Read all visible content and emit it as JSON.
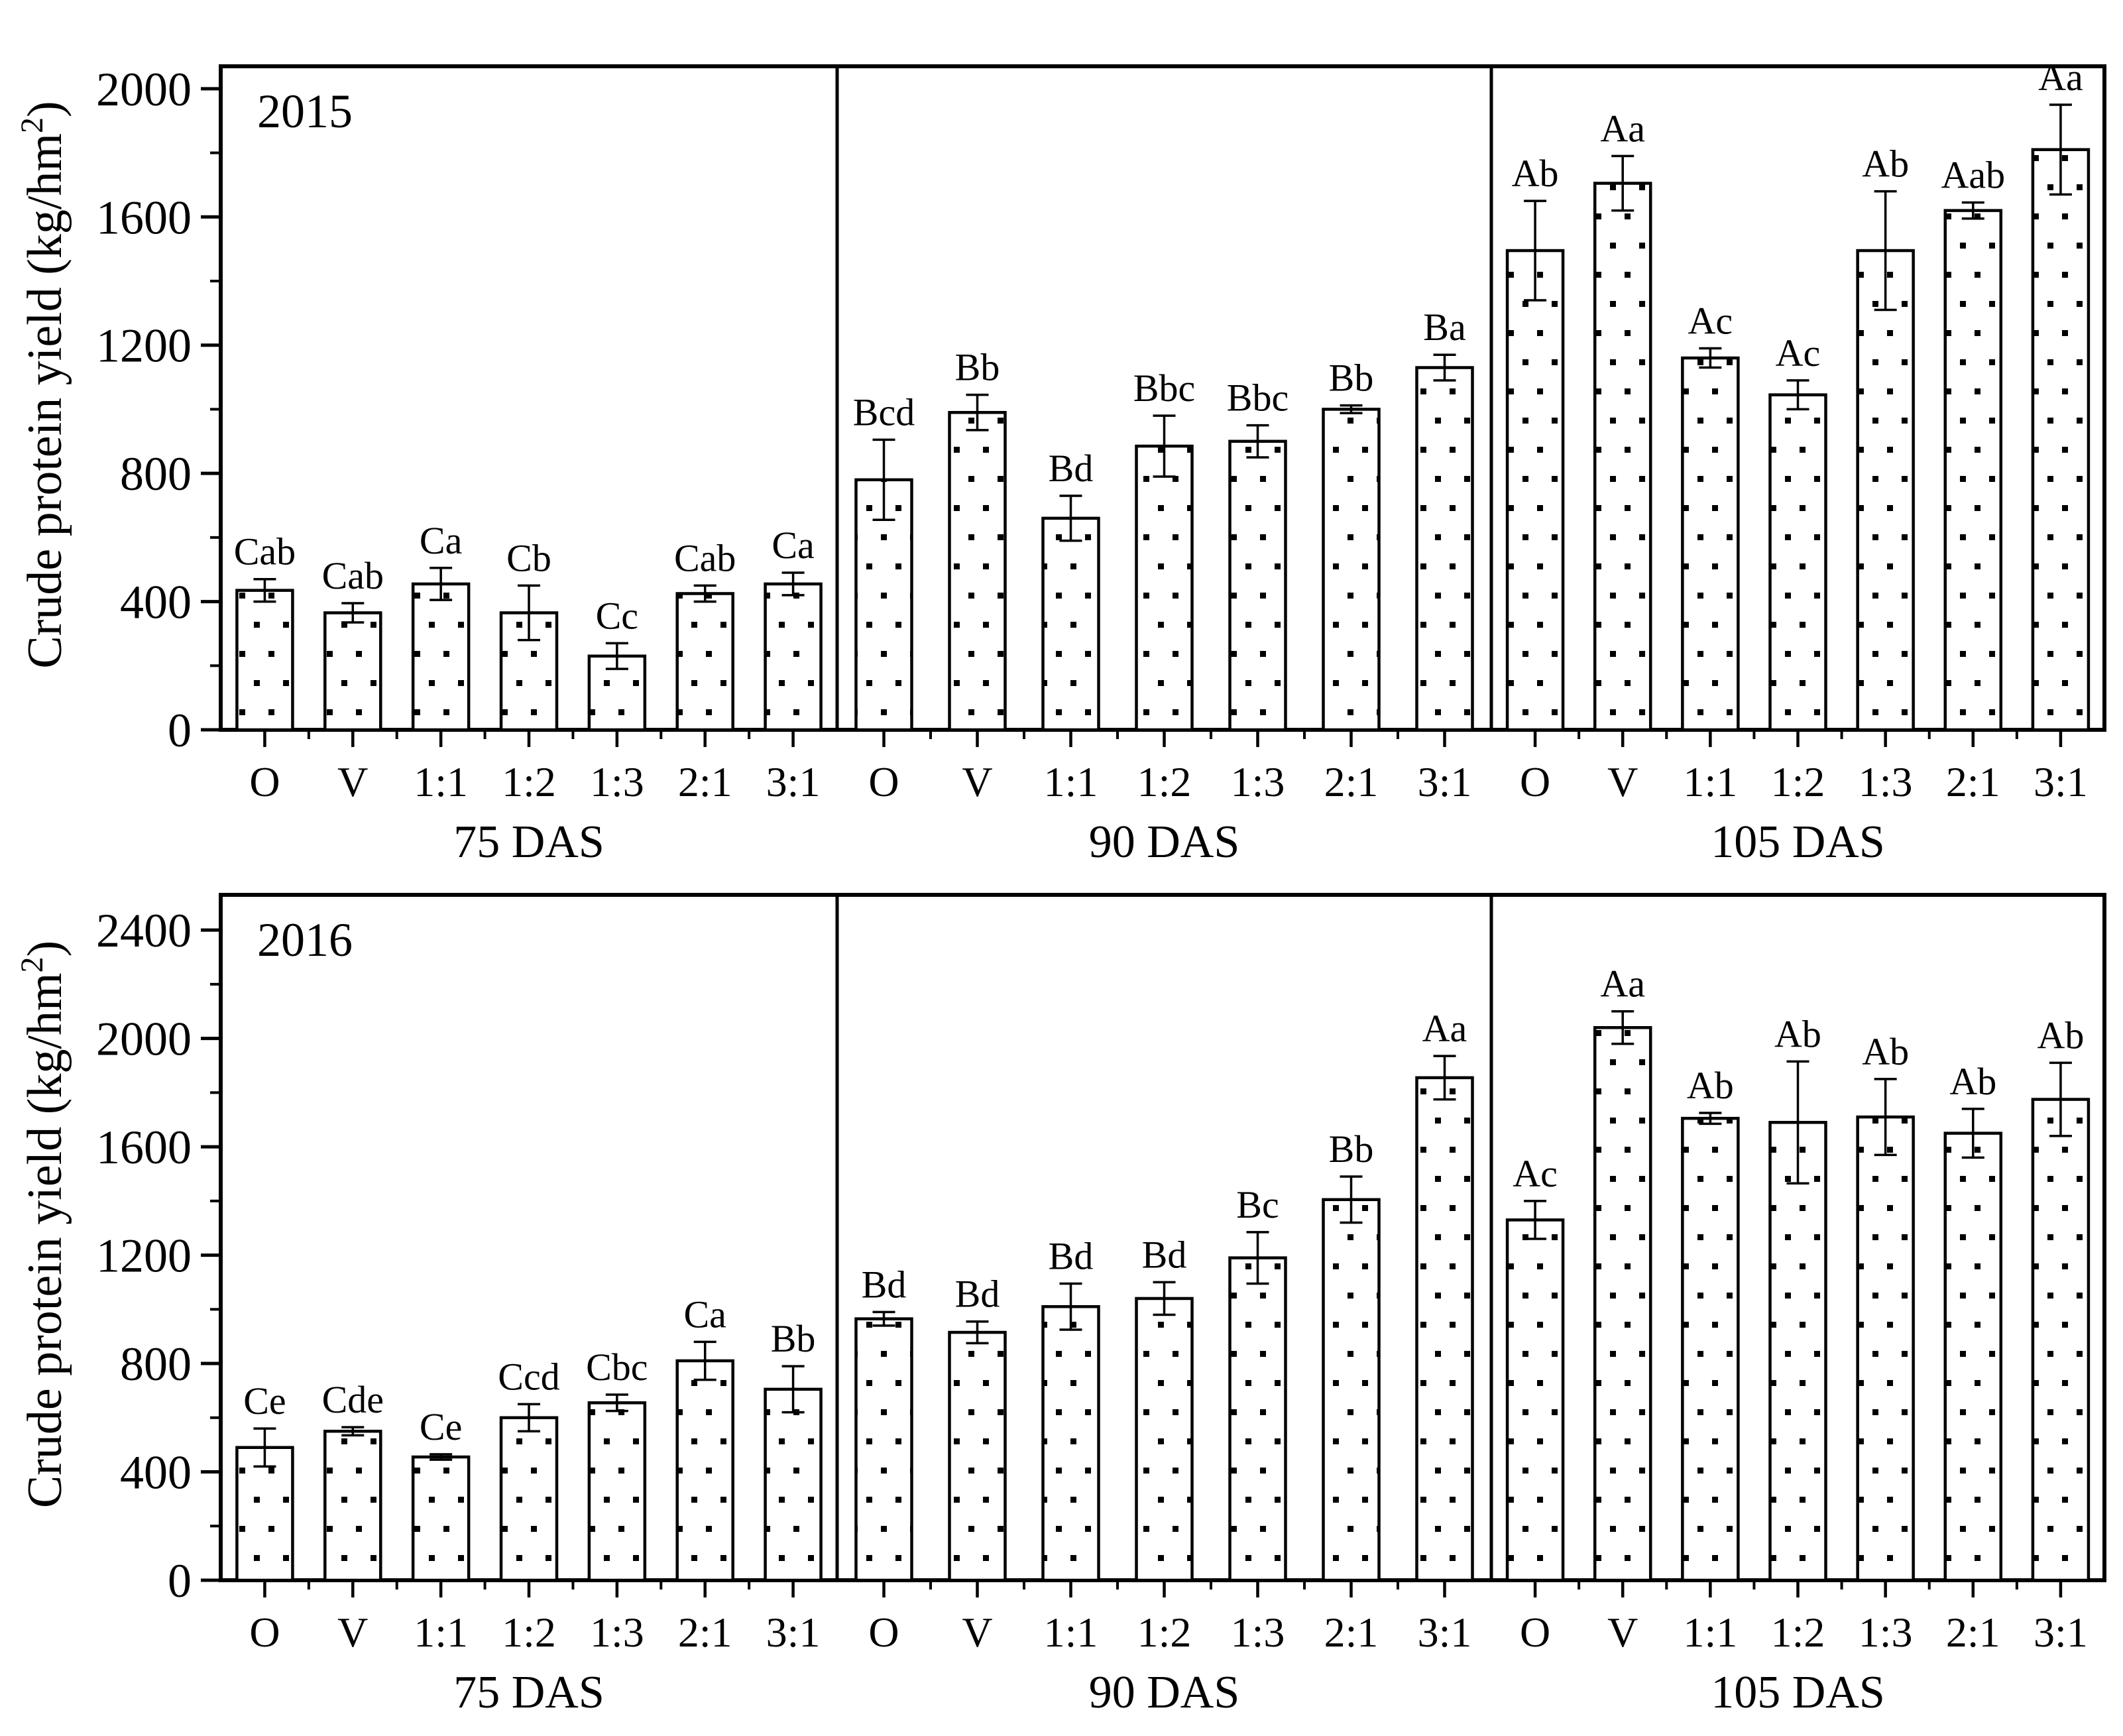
{
  "figure": {
    "background": "#ffffff",
    "foreground": "#000000",
    "y_axis_title": {
      "prefix": "Crude protein yield (kg/hm",
      "superscript": "2",
      "suffix": ")"
    }
  },
  "chart_data": [
    {
      "type": "bar",
      "title": "2015",
      "ylabel": "Crude protein yield (kg/hm²)",
      "xlabel": "",
      "ylim": [
        0,
        2070
      ],
      "yticks_major": [
        0,
        400,
        800,
        1200,
        1600,
        2000
      ],
      "ytick_minor_step": 200,
      "grid": false,
      "legend": "none",
      "categories": [
        "O",
        "V",
        "1:1",
        "1:2",
        "1:3",
        "2:1",
        "3:1"
      ],
      "group_labels": [
        "75 DAS",
        "90 DAS",
        "105 DAS"
      ],
      "series": [
        {
          "group": "75 DAS",
          "values": [
            435,
            365,
            455,
            365,
            230,
            425,
            455
          ],
          "errors": [
            35,
            30,
            50,
            85,
            40,
            25,
            35
          ],
          "letters": [
            "Cab",
            "Cab",
            "Ca",
            "Cb",
            "Cc",
            "Cab",
            "Ca"
          ]
        },
        {
          "group": "90 DAS",
          "values": [
            780,
            990,
            660,
            885,
            900,
            1000,
            1130
          ],
          "errors": [
            125,
            55,
            70,
            95,
            50,
            12,
            40
          ],
          "letters": [
            "Bcd",
            "Bb",
            "Bd",
            "Bbc",
            "Bbc",
            "Bb",
            "Ba"
          ]
        },
        {
          "group": "105 DAS",
          "values": [
            1495,
            1705,
            1160,
            1045,
            1495,
            1620,
            1810
          ],
          "errors": [
            155,
            85,
            30,
            45,
            185,
            25,
            140
          ],
          "letters": [
            "Ab",
            "Aa",
            "Ac",
            "Ac",
            "Ab",
            "Aab",
            "Aa"
          ]
        }
      ]
    },
    {
      "type": "bar",
      "title": "2016",
      "ylabel": "Crude protein yield (kg/hm²)",
      "xlabel": "",
      "ylim": [
        0,
        2530
      ],
      "yticks_major": [
        0,
        400,
        800,
        1200,
        1600,
        2000,
        2400
      ],
      "ytick_minor_step": 200,
      "grid": false,
      "legend": "none",
      "categories": [
        "O",
        "V",
        "1:1",
        "1:2",
        "1:3",
        "2:1",
        "3:1"
      ],
      "group_labels": [
        "75 DAS",
        "90 DAS",
        "105 DAS"
      ],
      "series": [
        {
          "group": "75 DAS",
          "values": [
            490,
            550,
            455,
            600,
            655,
            810,
            705
          ],
          "errors": [
            70,
            15,
            10,
            50,
            30,
            70,
            85
          ],
          "letters": [
            "Ce",
            "Cde",
            "Ce",
            "Ccd",
            "Cbc",
            "Ca",
            "Bb"
          ]
        },
        {
          "group": "90 DAS",
          "values": [
            965,
            915,
            1010,
            1040,
            1190,
            1405,
            1855
          ],
          "errors": [
            25,
            40,
            85,
            60,
            95,
            85,
            80
          ],
          "letters": [
            "Bd",
            "Bd",
            "Bd",
            "Bd",
            "Bc",
            "Bb",
            "Aa"
          ]
        },
        {
          "group": "105 DAS",
          "values": [
            1330,
            2040,
            1705,
            1690,
            1710,
            1650,
            1775
          ],
          "errors": [
            70,
            60,
            20,
            225,
            140,
            90,
            135
          ],
          "letters": [
            "Ac",
            "Aa",
            "Ab",
            "Ab",
            "Ab",
            "Ab",
            "Ab"
          ]
        }
      ]
    }
  ]
}
